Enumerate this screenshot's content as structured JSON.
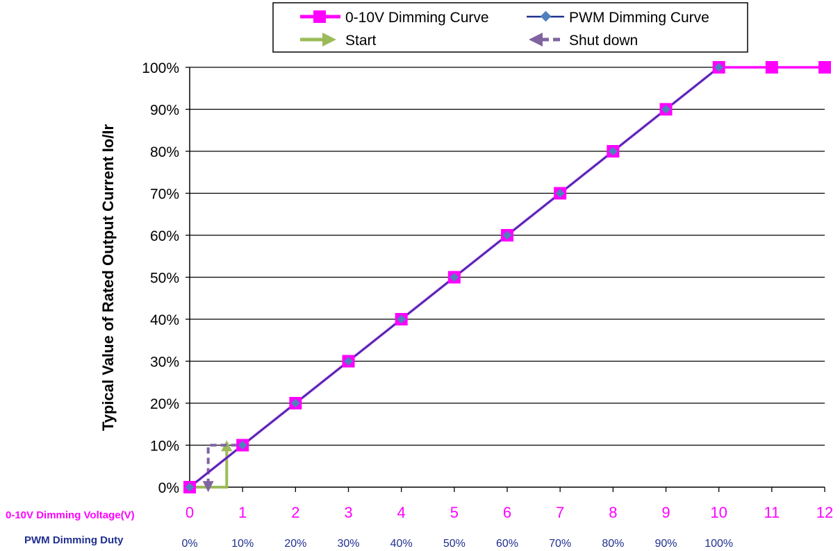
{
  "chart_data": {
    "type": "line",
    "ylabel": "Typical Value of Rated Output Current Io/Ir",
    "x_rows": [
      {
        "label": "0-10V Dimming Voltage(V)",
        "color": "#ff00ff",
        "ticks": [
          "0",
          "1",
          "2",
          "3",
          "4",
          "5",
          "6",
          "7",
          "8",
          "9",
          "10",
          "11",
          "12"
        ]
      },
      {
        "label": "PWM Dimming Duty",
        "color": "#1f2f8f",
        "ticks": [
          "0%",
          "10%",
          "20%",
          "30%",
          "40%",
          "50%",
          "60%",
          "70%",
          "80%",
          "90%",
          "100%"
        ]
      }
    ],
    "xlim": [
      0,
      12
    ],
    "ylim": [
      0,
      100
    ],
    "y_ticks": [
      "0%",
      "10%",
      "20%",
      "30%",
      "40%",
      "50%",
      "60%",
      "70%",
      "80%",
      "90%",
      "100%"
    ],
    "grid": true,
    "legend_position": "top",
    "series": [
      {
        "name": "0-10V Dimming Curve",
        "color": "#ff00ff",
        "marker": "square",
        "x": [
          0,
          1,
          2,
          3,
          4,
          5,
          6,
          7,
          8,
          9,
          10,
          11,
          12
        ],
        "y": [
          0,
          10,
          20,
          30,
          40,
          50,
          60,
          70,
          80,
          90,
          100,
          100,
          100
        ]
      },
      {
        "name": "PWM Dimming Curve",
        "color": "#4f81bd",
        "line_color": "#1f2f8f",
        "marker": "diamond",
        "x": [
          0,
          1,
          2,
          3,
          4,
          5,
          6,
          7,
          8,
          9,
          10
        ],
        "y": [
          0,
          10,
          20,
          30,
          40,
          50,
          60,
          70,
          80,
          90,
          100
        ]
      }
    ],
    "annotations": [
      {
        "name": "Start",
        "color": "#9bbb59",
        "style": "solid-arrow",
        "path_x": [
          0,
          0.7,
          0.7
        ],
        "path_y": [
          0,
          0,
          10
        ]
      },
      {
        "name": "Shut down",
        "color": "#8064a2",
        "style": "dashed-arrow",
        "path_x": [
          0.9,
          0.35,
          0.35
        ],
        "path_y": [
          10,
          10,
          0
        ]
      }
    ]
  }
}
